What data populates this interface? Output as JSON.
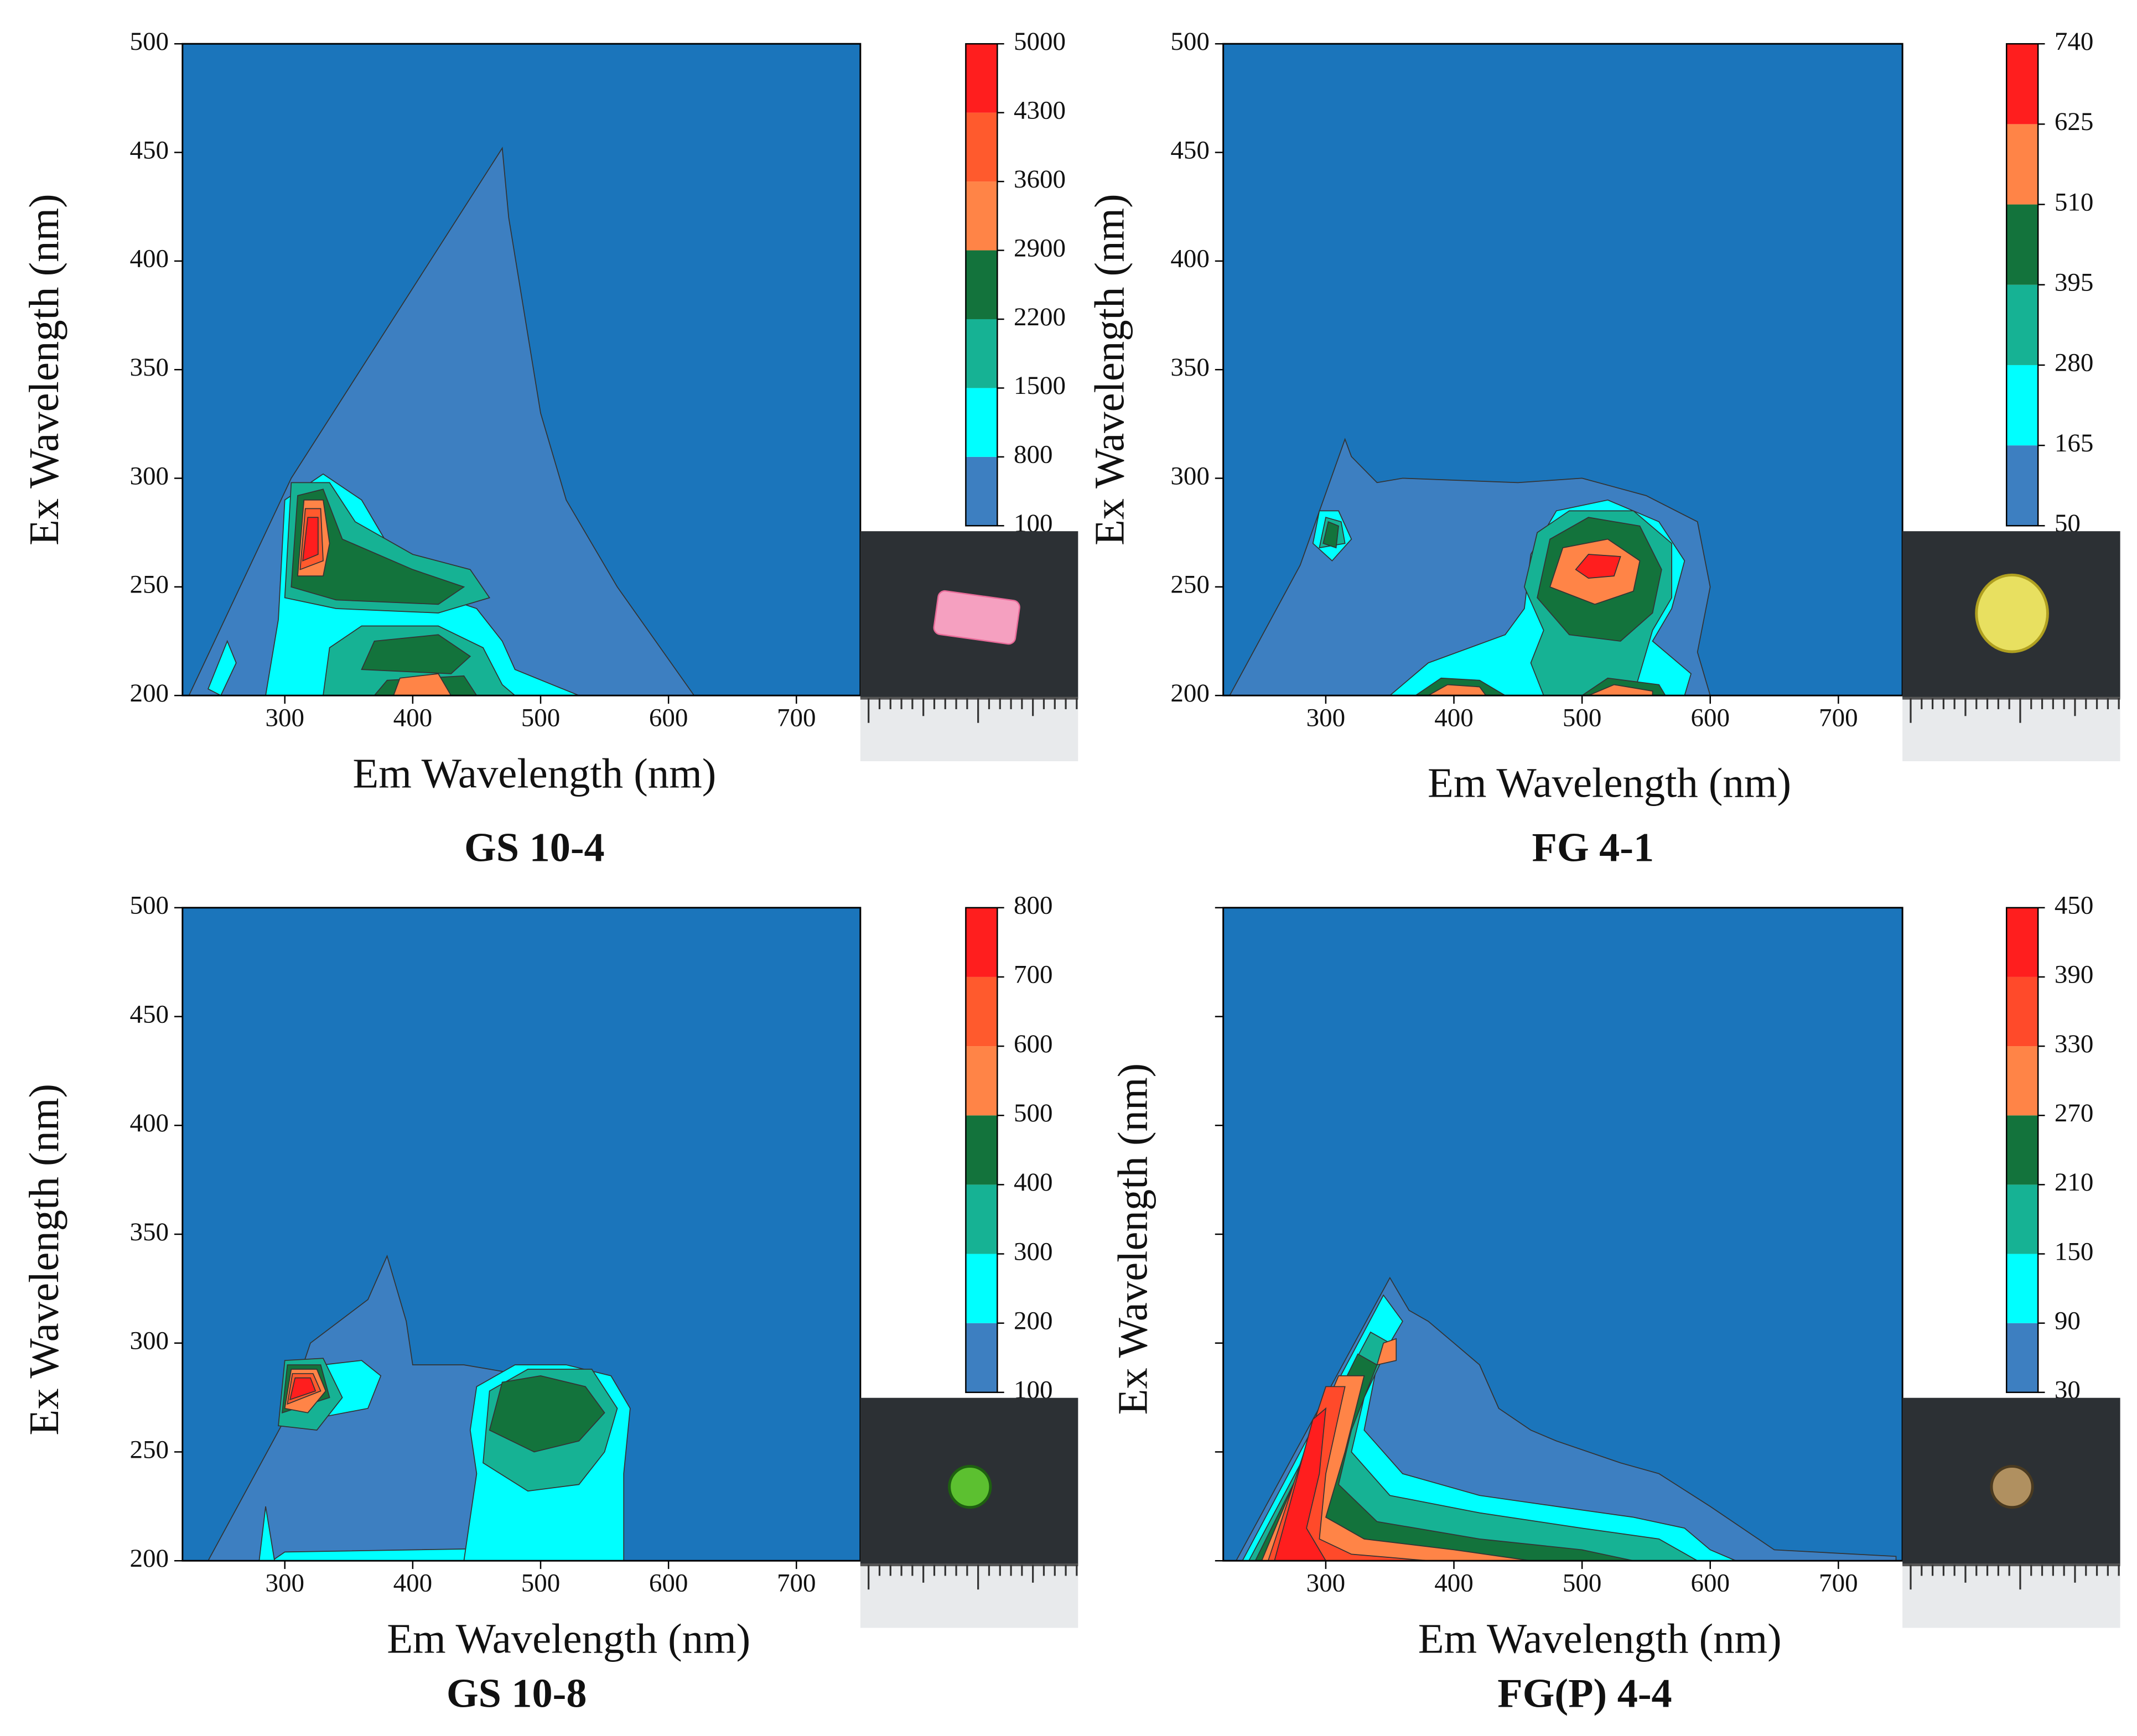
{
  "chart_data": [
    {
      "type": "contour",
      "title": "GS 10-4",
      "x_label": "Em Wavelength (nm)",
      "y_label": "Ex Wavelength (nm)",
      "xlim": [
        220,
        750
      ],
      "ylim": [
        200,
        500
      ],
      "xticks": [
        300,
        400,
        500,
        600,
        700
      ],
      "yticks": [
        200,
        250,
        300,
        350,
        400,
        450,
        500
      ],
      "background": "#1b75bb",
      "levels": [
        100,
        800,
        1500,
        2200,
        2900,
        3600,
        4300,
        5000
      ],
      "colors": [
        "#3d7fc1",
        "#00ffff",
        "#16b294",
        "#13733c",
        "#ff8447",
        "#ff5a2d",
        "#ff1e1e"
      ]
    },
    {
      "type": "contour",
      "title": "FG 4-1",
      "x_label": "Em Wavelength (nm)",
      "y_label": "Ex Wavelength (nm)",
      "xlim": [
        220,
        750
      ],
      "ylim": [
        200,
        500
      ],
      "xticks": [
        300,
        400,
        500,
        600,
        700
      ],
      "yticks": [
        200,
        250,
        300,
        350,
        400,
        450,
        500
      ],
      "background": "#1b75bb",
      "levels": [
        50,
        165,
        280,
        395,
        510,
        625,
        740
      ],
      "colors": [
        "#3d7fc1",
        "#00ffff",
        "#16b294",
        "#13733c",
        "#ff8447",
        "#ff1e1e"
      ]
    },
    {
      "type": "contour",
      "title": "GS 10-8",
      "x_label": "Em Wavelength (nm)",
      "y_label": "Ex Wavelength (nm)",
      "xlim": [
        220,
        750
      ],
      "ylim": [
        200,
        500
      ],
      "xticks": [
        300,
        400,
        500,
        600,
        700
      ],
      "yticks": [
        200,
        250,
        300,
        350,
        400,
        450,
        500
      ],
      "background": "#1b75bb",
      "levels": [
        100,
        200,
        300,
        400,
        500,
        600,
        700,
        800
      ],
      "colors": [
        "#3d7fc1",
        "#00ffff",
        "#16b294",
        "#13733c",
        "#ff8447",
        "#ff5a2d",
        "#ff1e1e"
      ]
    },
    {
      "type": "contour",
      "title": "FG(P) 4-4",
      "x_label": "Em Wavelength (nm)",
      "y_label": "Ex Wavelength (nm)",
      "xlim": [
        220,
        750
      ],
      "ylim": [
        200,
        500
      ],
      "xticks": [
        300,
        400,
        500,
        600,
        700
      ],
      "yticks": [
        200,
        250,
        300,
        350,
        400,
        450,
        500
      ],
      "ytick_labels": false,
      "background": "#1b75bb",
      "levels": [
        30,
        90,
        150,
        210,
        270,
        330,
        390,
        450
      ],
      "colors": [
        "#3d7fc1",
        "#00ffff",
        "#16b294",
        "#13733c",
        "#ff8447",
        "#ff4a2a",
        "#ff1e1e"
      ]
    }
  ]
}
